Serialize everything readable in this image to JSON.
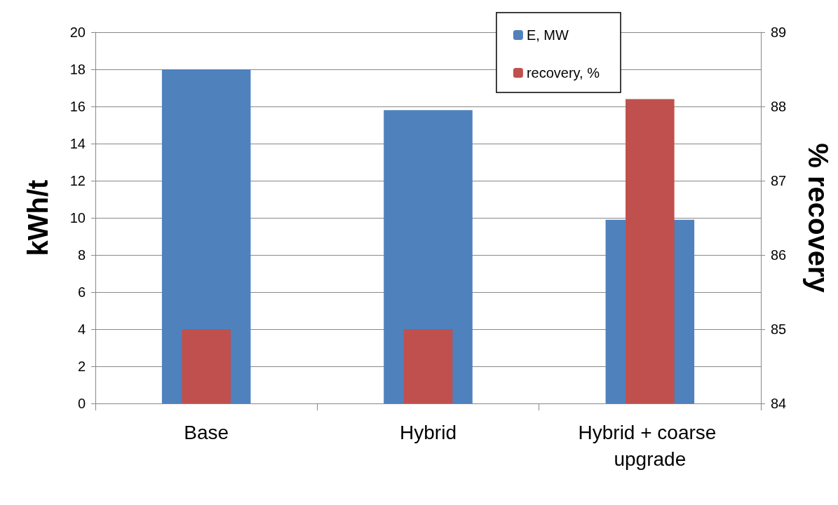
{
  "chart_data": {
    "type": "bar",
    "categories": [
      "Base",
      "Hybrid",
      "Hybrid + coarse upgrade"
    ],
    "series": [
      {
        "name": "E, MW",
        "color": "#4f81bd",
        "values": [
          18,
          15.8,
          9.9
        ]
      },
      {
        "name": "recovery, %",
        "color": "#c0504d",
        "values": [
          85,
          85,
          88.1
        ],
        "axis": "y2"
      }
    ],
    "ylabel": "kWh/t",
    "y2label": "% recovery",
    "ylim": [
      0,
      20
    ],
    "yticks": [
      0,
      2,
      4,
      6,
      8,
      10,
      12,
      14,
      16,
      18,
      20
    ],
    "y2lim": [
      84,
      89
    ],
    "y2ticks": [
      84,
      85,
      86,
      87,
      88,
      89
    ],
    "grid": "y",
    "legend": "top right"
  }
}
